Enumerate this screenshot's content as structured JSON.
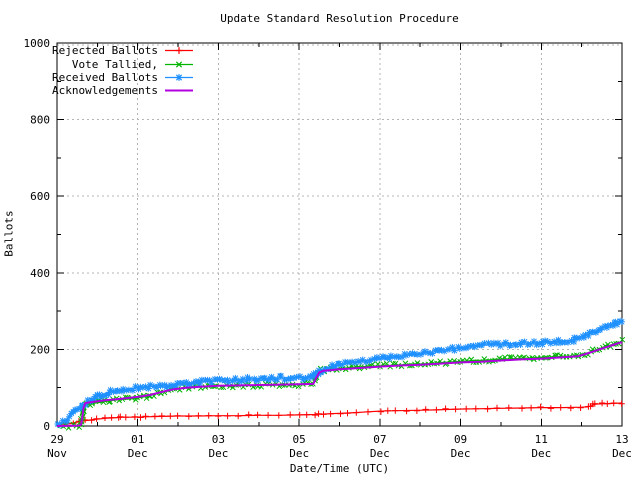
{
  "chart_data": {
    "type": "line",
    "title": "Update Standard Resolution Procedure",
    "xlabel": "Date/Time (UTC)",
    "ylabel": "Ballots",
    "ylim": [
      0,
      1000
    ],
    "xlim_days": [
      0,
      14
    ],
    "x_unit": "days since 29 Nov 00:00 UTC",
    "grid": true,
    "grid_color": "#b4b4b4",
    "border_color": "#000000",
    "legend_position": "top-left",
    "y_ticks": [
      0,
      200,
      400,
      600,
      800,
      1000
    ],
    "x_ticks": [
      {
        "day": 0,
        "line1": "29",
        "line2": "Nov"
      },
      {
        "day": 2,
        "line1": "01",
        "line2": "Dec"
      },
      {
        "day": 4,
        "line1": "03",
        "line2": "Dec"
      },
      {
        "day": 6,
        "line1": "05",
        "line2": "Dec"
      },
      {
        "day": 8,
        "line1": "07",
        "line2": "Dec"
      },
      {
        "day": 10,
        "line1": "09",
        "line2": "Dec"
      },
      {
        "day": 12,
        "line1": "11",
        "line2": "Dec"
      }
    ],
    "series": [
      {
        "name": "Rejected Ballots",
        "color": "#ff0000",
        "marker": "plus",
        "points": [
          [
            0,
            0
          ],
          [
            0.1,
            2
          ],
          [
            0.25,
            5
          ],
          [
            0.4,
            8
          ],
          [
            0.55,
            11
          ],
          [
            0.7,
            14
          ],
          [
            0.85,
            16
          ],
          [
            1.0,
            18
          ],
          [
            1.2,
            20
          ],
          [
            1.5,
            22
          ],
          [
            1.55,
            23
          ],
          [
            1.9,
            23
          ],
          [
            2.2,
            24
          ],
          [
            2.6,
            25
          ],
          [
            3.0,
            26
          ],
          [
            3.5,
            26
          ],
          [
            4.0,
            27
          ],
          [
            4.5,
            27
          ],
          [
            5.0,
            28
          ],
          [
            5.5,
            28
          ],
          [
            6.0,
            29
          ],
          [
            6.4,
            30
          ],
          [
            6.5,
            31
          ],
          [
            6.6,
            31
          ],
          [
            6.75,
            32
          ],
          [
            7.0,
            33
          ],
          [
            7.4,
            35
          ],
          [
            7.7,
            37
          ],
          [
            8.0,
            39
          ],
          [
            8.4,
            40
          ],
          [
            8.9,
            41
          ],
          [
            9.4,
            42
          ],
          [
            9.9,
            44
          ],
          [
            10.4,
            45
          ],
          [
            10.9,
            46
          ],
          [
            11.5,
            47
          ],
          [
            12.0,
            48
          ],
          [
            12.5,
            48
          ],
          [
            13.0,
            49
          ],
          [
            13.15,
            50
          ],
          [
            13.25,
            53
          ],
          [
            13.3,
            56
          ],
          [
            13.35,
            57
          ],
          [
            13.5,
            58
          ],
          [
            13.8,
            59
          ],
          [
            14.0,
            60
          ]
        ]
      },
      {
        "name": "Vote Tallied,",
        "color": "#00b400",
        "marker": "cross",
        "points": [
          [
            0,
            0
          ],
          [
            0.3,
            0
          ],
          [
            0.55,
            0
          ],
          [
            0.6,
            3
          ],
          [
            0.62,
            15
          ],
          [
            0.64,
            30
          ],
          [
            0.66,
            45
          ],
          [
            0.68,
            52
          ],
          [
            0.72,
            55
          ],
          [
            0.8,
            57
          ],
          [
            0.9,
            59
          ],
          [
            1.0,
            61
          ],
          [
            1.2,
            64
          ],
          [
            1.4,
            67
          ],
          [
            1.7,
            70
          ],
          [
            2.0,
            73
          ],
          [
            2.2,
            77
          ],
          [
            2.4,
            82
          ],
          [
            2.6,
            88
          ],
          [
            2.8,
            94
          ],
          [
            3.0,
            98
          ],
          [
            3.2,
            101
          ],
          [
            3.5,
            103
          ],
          [
            3.8,
            104
          ],
          [
            4.2,
            105
          ],
          [
            4.6,
            106
          ],
          [
            5.0,
            106
          ],
          [
            5.5,
            107
          ],
          [
            6.0,
            108
          ],
          [
            6.2,
            109
          ],
          [
            6.35,
            110
          ],
          [
            6.4,
            122
          ],
          [
            6.44,
            135
          ],
          [
            6.5,
            145
          ],
          [
            6.6,
            147
          ],
          [
            6.85,
            149
          ],
          [
            7.0,
            150
          ],
          [
            7.3,
            153
          ],
          [
            7.6,
            155
          ],
          [
            8.0,
            157
          ],
          [
            8.4,
            159
          ],
          [
            8.8,
            161
          ],
          [
            9.2,
            163
          ],
          [
            9.6,
            166
          ],
          [
            10.0,
            169
          ],
          [
            10.4,
            171
          ],
          [
            10.8,
            173
          ],
          [
            11.2,
            175
          ],
          [
            11.6,
            177
          ],
          [
            12.0,
            179
          ],
          [
            12.4,
            181
          ],
          [
            12.8,
            183
          ],
          [
            13.0,
            186
          ],
          [
            13.15,
            191
          ],
          [
            13.3,
            197
          ],
          [
            13.5,
            204
          ],
          [
            13.7,
            211
          ],
          [
            13.85,
            216
          ],
          [
            14.0,
            221
          ]
        ]
      },
      {
        "name": "Received Ballots",
        "color": "#1e90ff",
        "marker": "asterisk",
        "points": [
          [
            0,
            0
          ],
          [
            0.08,
            5
          ],
          [
            0.15,
            10
          ],
          [
            0.25,
            18
          ],
          [
            0.35,
            28
          ],
          [
            0.45,
            38
          ],
          [
            0.55,
            48
          ],
          [
            0.65,
            56
          ],
          [
            0.75,
            63
          ],
          [
            0.85,
            69
          ],
          [
            0.95,
            75
          ],
          [
            1.1,
            81
          ],
          [
            1.25,
            86
          ],
          [
            1.4,
            90
          ],
          [
            1.6,
            94
          ],
          [
            1.8,
            97
          ],
          [
            2.0,
            100
          ],
          [
            2.2,
            102
          ],
          [
            2.4,
            104
          ],
          [
            2.7,
            106
          ],
          [
            3.0,
            109
          ],
          [
            3.3,
            112
          ],
          [
            3.6,
            115
          ],
          [
            3.9,
            117
          ],
          [
            4.2,
            119
          ],
          [
            4.5,
            121
          ],
          [
            4.8,
            123
          ],
          [
            5.1,
            124
          ],
          [
            5.4,
            125
          ],
          [
            5.7,
            126
          ],
          [
            6.0,
            126
          ],
          [
            6.2,
            127
          ],
          [
            6.35,
            128
          ],
          [
            6.42,
            133
          ],
          [
            6.5,
            140
          ],
          [
            6.6,
            147
          ],
          [
            6.7,
            152
          ],
          [
            6.85,
            156
          ],
          [
            7.0,
            160
          ],
          [
            7.2,
            164
          ],
          [
            7.4,
            167
          ],
          [
            7.6,
            170
          ],
          [
            7.8,
            172
          ],
          [
            8.0,
            175
          ],
          [
            8.3,
            179
          ],
          [
            8.6,
            183
          ],
          [
            9.0,
            189
          ],
          [
            9.3,
            193
          ],
          [
            9.6,
            198
          ],
          [
            10.0,
            205
          ],
          [
            10.3,
            208
          ],
          [
            10.6,
            211
          ],
          [
            11.0,
            214
          ],
          [
            11.4,
            216
          ],
          [
            11.8,
            217
          ],
          [
            12.0,
            218
          ],
          [
            12.3,
            220
          ],
          [
            12.6,
            222
          ],
          [
            12.9,
            226
          ],
          [
            13.0,
            230
          ],
          [
            13.15,
            237
          ],
          [
            13.3,
            245
          ],
          [
            13.45,
            252
          ],
          [
            13.6,
            258
          ],
          [
            13.75,
            263
          ],
          [
            13.9,
            268
          ],
          [
            14.0,
            272
          ]
        ]
      },
      {
        "name": "Acknowledgements",
        "color": "#b000e0",
        "marker": "none",
        "points": [
          [
            0,
            0
          ],
          [
            0.55,
            1
          ],
          [
            0.6,
            4
          ],
          [
            0.63,
            25
          ],
          [
            0.66,
            48
          ],
          [
            0.7,
            60
          ],
          [
            0.9,
            63
          ],
          [
            1.2,
            67
          ],
          [
            1.6,
            71
          ],
          [
            2.0,
            76
          ],
          [
            2.3,
            81
          ],
          [
            2.6,
            89
          ],
          [
            2.9,
            96
          ],
          [
            3.2,
            100
          ],
          [
            3.6,
            103
          ],
          [
            4.0,
            105
          ],
          [
            4.5,
            106
          ],
          [
            5.0,
            107
          ],
          [
            5.5,
            108
          ],
          [
            6.0,
            109
          ],
          [
            6.35,
            110
          ],
          [
            6.42,
            125
          ],
          [
            6.5,
            140
          ],
          [
            6.6,
            144
          ],
          [
            6.8,
            146
          ],
          [
            7.0,
            148
          ],
          [
            7.4,
            151
          ],
          [
            8.0,
            155
          ],
          [
            8.5,
            158
          ],
          [
            9.0,
            160
          ],
          [
            9.5,
            163
          ],
          [
            10.0,
            166
          ],
          [
            10.5,
            168
          ],
          [
            11.0,
            171
          ],
          [
            11.5,
            174
          ],
          [
            12.0,
            176
          ],
          [
            12.5,
            179
          ],
          [
            12.9,
            182
          ],
          [
            13.1,
            188
          ],
          [
            13.3,
            195
          ],
          [
            13.5,
            202
          ],
          [
            13.7,
            209
          ],
          [
            13.85,
            214
          ],
          [
            14.0,
            219
          ]
        ]
      }
    ]
  }
}
